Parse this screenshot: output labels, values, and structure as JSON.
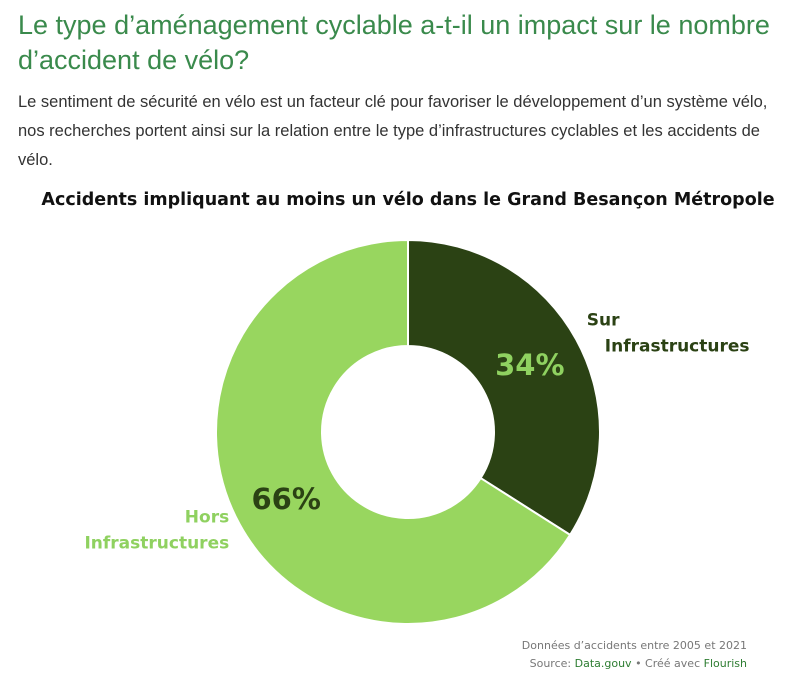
{
  "header": {
    "title": "Le type d’aménagement cyclable a-t-il un impact sur le nombre d’accident de vélo?",
    "intro": "Le sentiment de sécurité en vélo est un facteur clé pour favoriser le développement d’un système vélo, nos recherches portent ainsi sur la relation entre le type d’infrastructures cyclables et les accidents de vélo."
  },
  "chart_data": {
    "type": "pie",
    "variant": "donut",
    "title": "Accidents impliquant au moins un vélo dans le Grand Besançon Métropole",
    "slices": [
      {
        "label_lines": [
          "Sur",
          "Infrastructures"
        ],
        "value": 34,
        "value_label": "34%",
        "color": "#2b4214",
        "pct_color": "#8fd160",
        "label_color": "#2b4214"
      },
      {
        "label_lines": [
          "Hors",
          "Infrastructures"
        ],
        "value": 66,
        "value_label": "66%",
        "color": "#98d65f",
        "pct_color": "#2b4214",
        "label_color": "#8fd160"
      }
    ]
  },
  "footer": {
    "note": "Données d’accidents entre 2005 et 2021",
    "source_prefix": "Source: ",
    "source_link": "Data.gouv",
    "separator": " • Créé avec ",
    "made_with_link": "Flourish"
  }
}
